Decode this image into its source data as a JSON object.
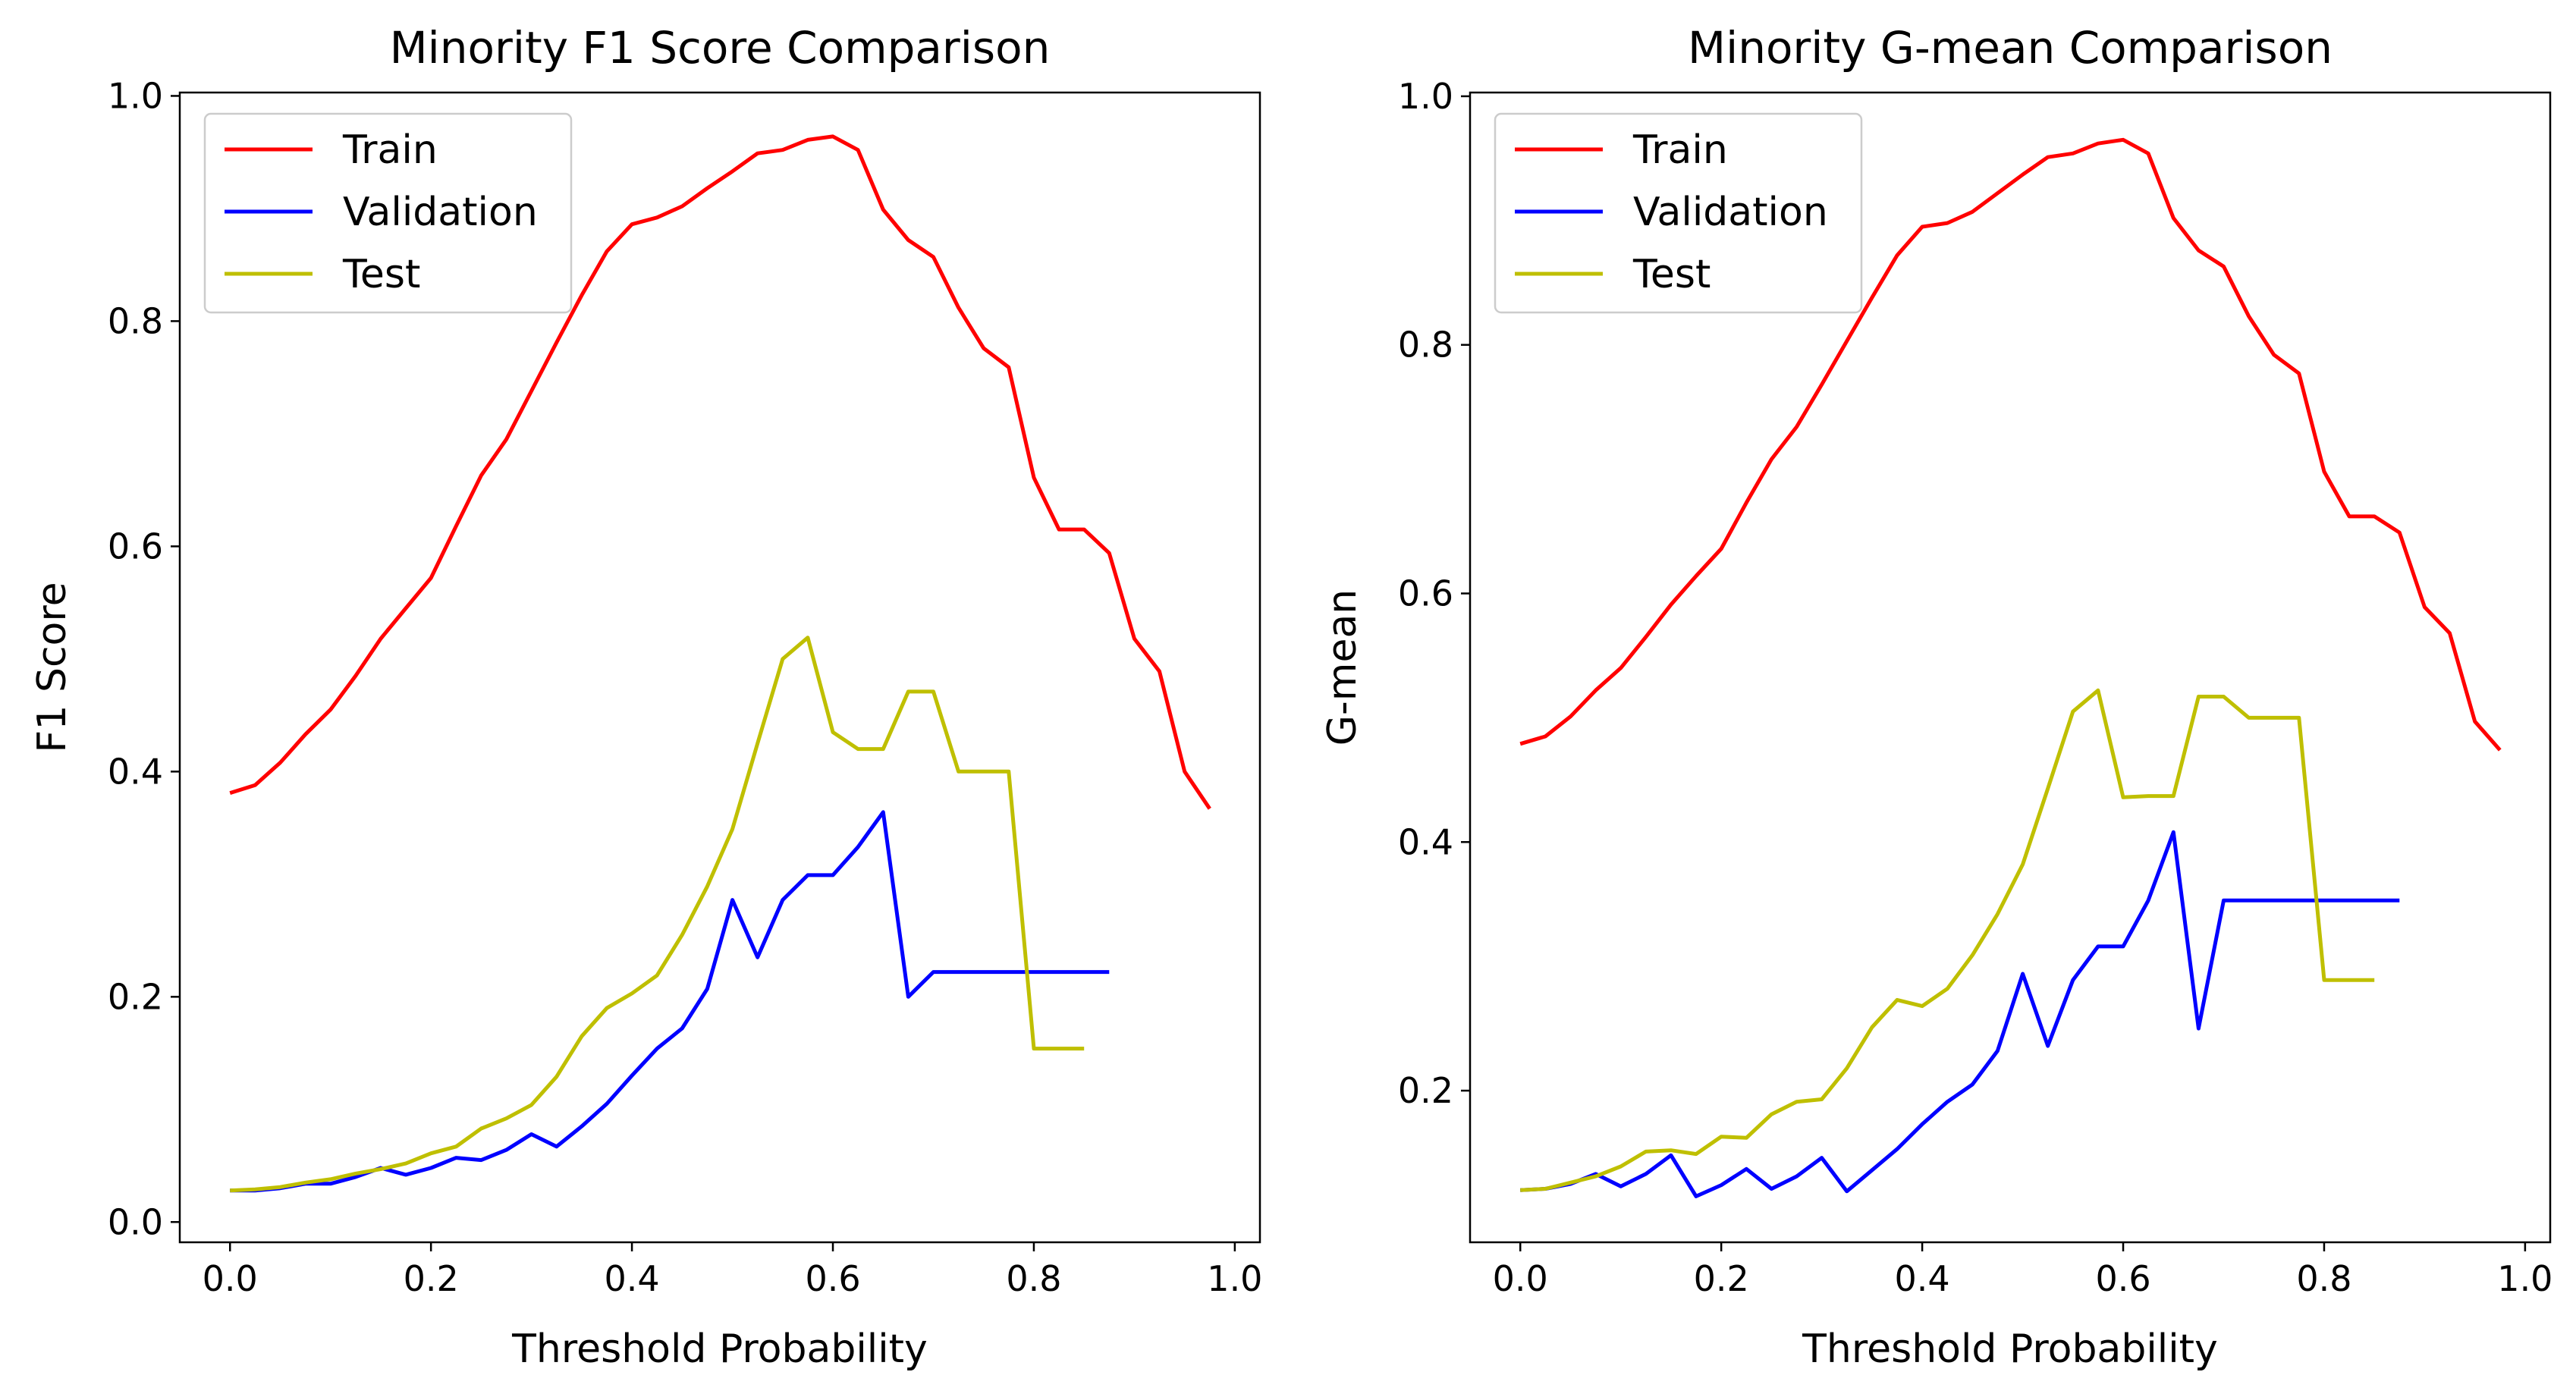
{
  "figure": {
    "colors": {
      "Train": "#ff0000",
      "Validation": "#0000ff",
      "Test": "#bfbf00"
    }
  },
  "chart_data": [
    {
      "type": "line",
      "title": "Minority F1 Score Comparison",
      "xlabel": "Threshold Probability",
      "ylabel": "F1 Score",
      "xlim": [
        -0.05,
        1.025
      ],
      "ylim": [
        -0.018,
        1.003
      ],
      "xticks": [
        0.0,
        0.2,
        0.4,
        0.6,
        0.8,
        1.0
      ],
      "xtick_labels": [
        "0.0",
        "0.2",
        "0.4",
        "0.6",
        "0.8",
        "1.0"
      ],
      "yticks": [
        0.0,
        0.2,
        0.4,
        0.6,
        0.8,
        1.0
      ],
      "ytick_labels": [
        "0.0",
        "0.2",
        "0.4",
        "0.6",
        "0.8",
        "1.0"
      ],
      "grid": false,
      "legend": "upper left",
      "series": [
        {
          "name": "Train",
          "color": "#ff0000",
          "x": [
            0.0,
            0.025,
            0.05,
            0.075,
            0.1,
            0.125,
            0.15,
            0.175,
            0.2,
            0.225,
            0.25,
            0.275,
            0.3,
            0.325,
            0.35,
            0.375,
            0.4,
            0.425,
            0.45,
            0.475,
            0.5,
            0.525,
            0.55,
            0.575,
            0.6,
            0.625,
            0.65,
            0.675,
            0.7,
            0.725,
            0.75,
            0.775,
            0.8,
            0.825,
            0.85,
            0.875,
            0.9,
            0.925,
            0.95,
            0.975
          ],
          "y": [
            0.381,
            0.388,
            0.408,
            0.433,
            0.455,
            0.485,
            0.518,
            0.545,
            0.572,
            0.618,
            0.663,
            0.695,
            0.738,
            0.781,
            0.823,
            0.862,
            0.886,
            0.892,
            0.902,
            0.918,
            0.933,
            0.949,
            0.952,
            0.961,
            0.964,
            0.952,
            0.899,
            0.872,
            0.857,
            0.812,
            0.776,
            0.759,
            0.661,
            0.615,
            0.615,
            0.594,
            0.518,
            0.489,
            0.4,
            0.367
          ]
        },
        {
          "name": "Validation",
          "color": "#0000ff",
          "x": [
            0.0,
            0.025,
            0.05,
            0.075,
            0.1,
            0.125,
            0.15,
            0.175,
            0.2,
            0.225,
            0.25,
            0.275,
            0.3,
            0.325,
            0.35,
            0.375,
            0.4,
            0.425,
            0.45,
            0.475,
            0.5,
            0.525,
            0.55,
            0.575,
            0.6,
            0.625,
            0.65,
            0.675,
            0.7,
            0.725,
            0.75,
            0.775,
            0.8,
            0.825,
            0.85,
            0.875
          ],
          "y": [
            0.028,
            0.028,
            0.03,
            0.034,
            0.034,
            0.04,
            0.048,
            0.042,
            0.048,
            0.057,
            0.055,
            0.064,
            0.078,
            0.067,
            0.085,
            0.105,
            0.13,
            0.154,
            0.172,
            0.207,
            0.286,
            0.235,
            0.286,
            0.308,
            0.308,
            0.333,
            0.364,
            0.2,
            0.222,
            0.222,
            0.222,
            0.222,
            0.222,
            0.222,
            0.222,
            0.222
          ]
        },
        {
          "name": "Test",
          "color": "#bfbf00",
          "x": [
            0.0,
            0.025,
            0.05,
            0.075,
            0.1,
            0.125,
            0.15,
            0.175,
            0.2,
            0.225,
            0.25,
            0.275,
            0.3,
            0.325,
            0.35,
            0.375,
            0.4,
            0.425,
            0.45,
            0.475,
            0.5,
            0.525,
            0.55,
            0.575,
            0.6,
            0.625,
            0.65,
            0.675,
            0.7,
            0.725,
            0.75,
            0.775,
            0.8,
            0.825,
            0.85
          ],
          "y": [
            0.028,
            0.029,
            0.031,
            0.035,
            0.038,
            0.043,
            0.047,
            0.052,
            0.061,
            0.067,
            0.083,
            0.092,
            0.104,
            0.129,
            0.165,
            0.19,
            0.203,
            0.219,
            0.255,
            0.298,
            0.349,
            0.425,
            0.5,
            0.519,
            0.435,
            0.42,
            0.42,
            0.471,
            0.471,
            0.4,
            0.4,
            0.4,
            0.154,
            0.154,
            0.154
          ]
        }
      ]
    },
    {
      "type": "line",
      "title": "Minority G-mean Comparison",
      "xlabel": "Threshold Probability",
      "ylabel": "G-mean",
      "xlim": [
        -0.05,
        1.025
      ],
      "ylim": [
        0.078,
        1.003
      ],
      "xticks": [
        0.0,
        0.2,
        0.4,
        0.6,
        0.8,
        1.0
      ],
      "xtick_labels": [
        "0.0",
        "0.2",
        "0.4",
        "0.6",
        "0.8",
        "1.0"
      ],
      "yticks": [
        0.2,
        0.4,
        0.6,
        0.8,
        1.0
      ],
      "ytick_labels": [
        "0.2",
        "0.4",
        "0.6",
        "0.8",
        "1.0"
      ],
      "grid": false,
      "legend": "upper left",
      "series": [
        {
          "name": "Train",
          "color": "#ff0000",
          "x": [
            0.0,
            0.025,
            0.05,
            0.075,
            0.1,
            0.125,
            0.15,
            0.175,
            0.2,
            0.225,
            0.25,
            0.275,
            0.3,
            0.325,
            0.35,
            0.375,
            0.4,
            0.425,
            0.45,
            0.475,
            0.5,
            0.525,
            0.55,
            0.575,
            0.6,
            0.625,
            0.65,
            0.675,
            0.7,
            0.725,
            0.75,
            0.775,
            0.8,
            0.825,
            0.85,
            0.875,
            0.9,
            0.925,
            0.95,
            0.975
          ],
          "y": [
            0.479,
            0.485,
            0.501,
            0.522,
            0.54,
            0.565,
            0.591,
            0.614,
            0.636,
            0.673,
            0.708,
            0.734,
            0.768,
            0.803,
            0.838,
            0.872,
            0.895,
            0.898,
            0.907,
            0.922,
            0.937,
            0.951,
            0.954,
            0.962,
            0.965,
            0.954,
            0.902,
            0.876,
            0.863,
            0.823,
            0.792,
            0.777,
            0.698,
            0.662,
            0.662,
            0.649,
            0.589,
            0.568,
            0.497,
            0.474
          ]
        },
        {
          "name": "Validation",
          "color": "#0000ff",
          "x": [
            0.0,
            0.025,
            0.05,
            0.075,
            0.1,
            0.125,
            0.15,
            0.175,
            0.2,
            0.225,
            0.25,
            0.275,
            0.3,
            0.325,
            0.35,
            0.375,
            0.4,
            0.425,
            0.45,
            0.475,
            0.5,
            0.525,
            0.55,
            0.575,
            0.6,
            0.625,
            0.65,
            0.675,
            0.7,
            0.725,
            0.75,
            0.775,
            0.8,
            0.825,
            0.85,
            0.875
          ],
          "y": [
            0.12,
            0.121,
            0.125,
            0.133,
            0.123,
            0.133,
            0.148,
            0.115,
            0.124,
            0.137,
            0.121,
            0.131,
            0.146,
            0.119,
            0.136,
            0.153,
            0.173,
            0.191,
            0.205,
            0.232,
            0.294,
            0.236,
            0.289,
            0.316,
            0.316,
            0.353,
            0.408,
            0.25,
            0.353,
            0.353,
            0.353,
            0.353,
            0.353,
            0.353,
            0.353,
            0.353
          ]
        },
        {
          "name": "Test",
          "color": "#bfbf00",
          "x": [
            0.0,
            0.025,
            0.05,
            0.075,
            0.1,
            0.125,
            0.15,
            0.175,
            0.2,
            0.225,
            0.25,
            0.275,
            0.3,
            0.325,
            0.35,
            0.375,
            0.4,
            0.425,
            0.45,
            0.475,
            0.5,
            0.525,
            0.55,
            0.575,
            0.6,
            0.625,
            0.65,
            0.675,
            0.7,
            0.725,
            0.75,
            0.775,
            0.8,
            0.825,
            0.85
          ],
          "y": [
            0.12,
            0.121,
            0.126,
            0.131,
            0.139,
            0.151,
            0.152,
            0.149,
            0.163,
            0.162,
            0.181,
            0.191,
            0.193,
            0.218,
            0.251,
            0.273,
            0.268,
            0.282,
            0.309,
            0.342,
            0.382,
            0.443,
            0.505,
            0.522,
            0.436,
            0.437,
            0.437,
            0.517,
            0.517,
            0.5,
            0.5,
            0.5,
            0.289,
            0.289,
            0.289
          ]
        }
      ]
    }
  ]
}
